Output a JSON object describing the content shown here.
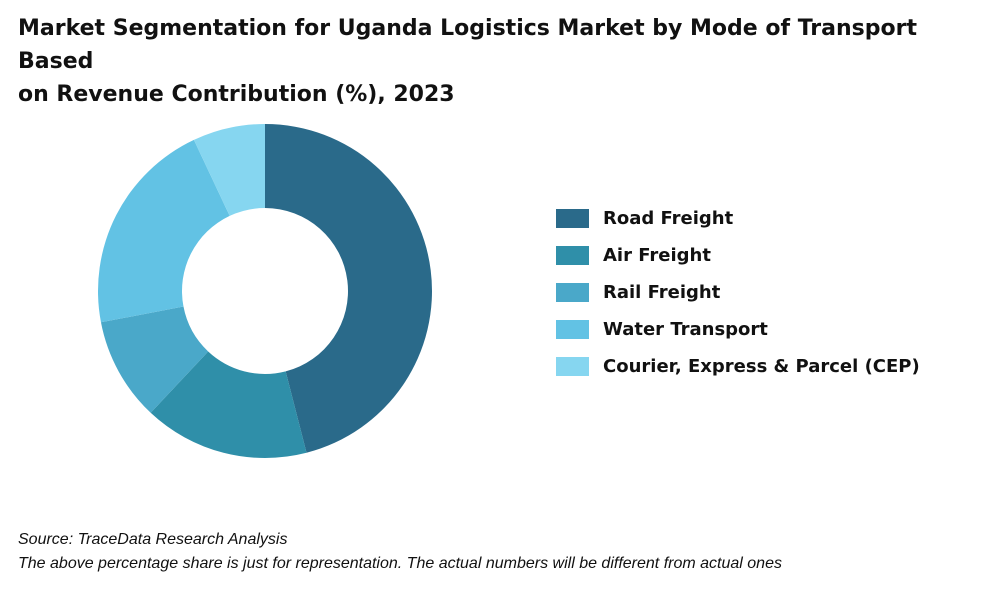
{
  "title": {
    "line1": "Market Segmentation for Uganda Logistics Market by Mode of Transport Based",
    "line2": "on Revenue Contribution (%), 2023"
  },
  "chart_data": {
    "type": "pie",
    "variant": "donut",
    "title": "Market Segmentation for Uganda Logistics Market by Mode of Transport Based on Revenue Contribution (%), 2023",
    "legend_position": "right",
    "categories": [
      "Road Freight",
      "Air Freight",
      "Rail Freight",
      "Water Transport",
      "Courier, Express & Parcel (CEP)"
    ],
    "values": [
      46,
      16,
      10,
      21,
      7
    ],
    "colors": [
      "#2a6a8a",
      "#2f8fa9",
      "#4aa8c9",
      "#62c2e4",
      "#86d6f0"
    ]
  },
  "footer": {
    "source": "Source: TraceData Research Analysis",
    "note": "The above percentage share is just for representation. The actual numbers will be different from actual ones"
  }
}
